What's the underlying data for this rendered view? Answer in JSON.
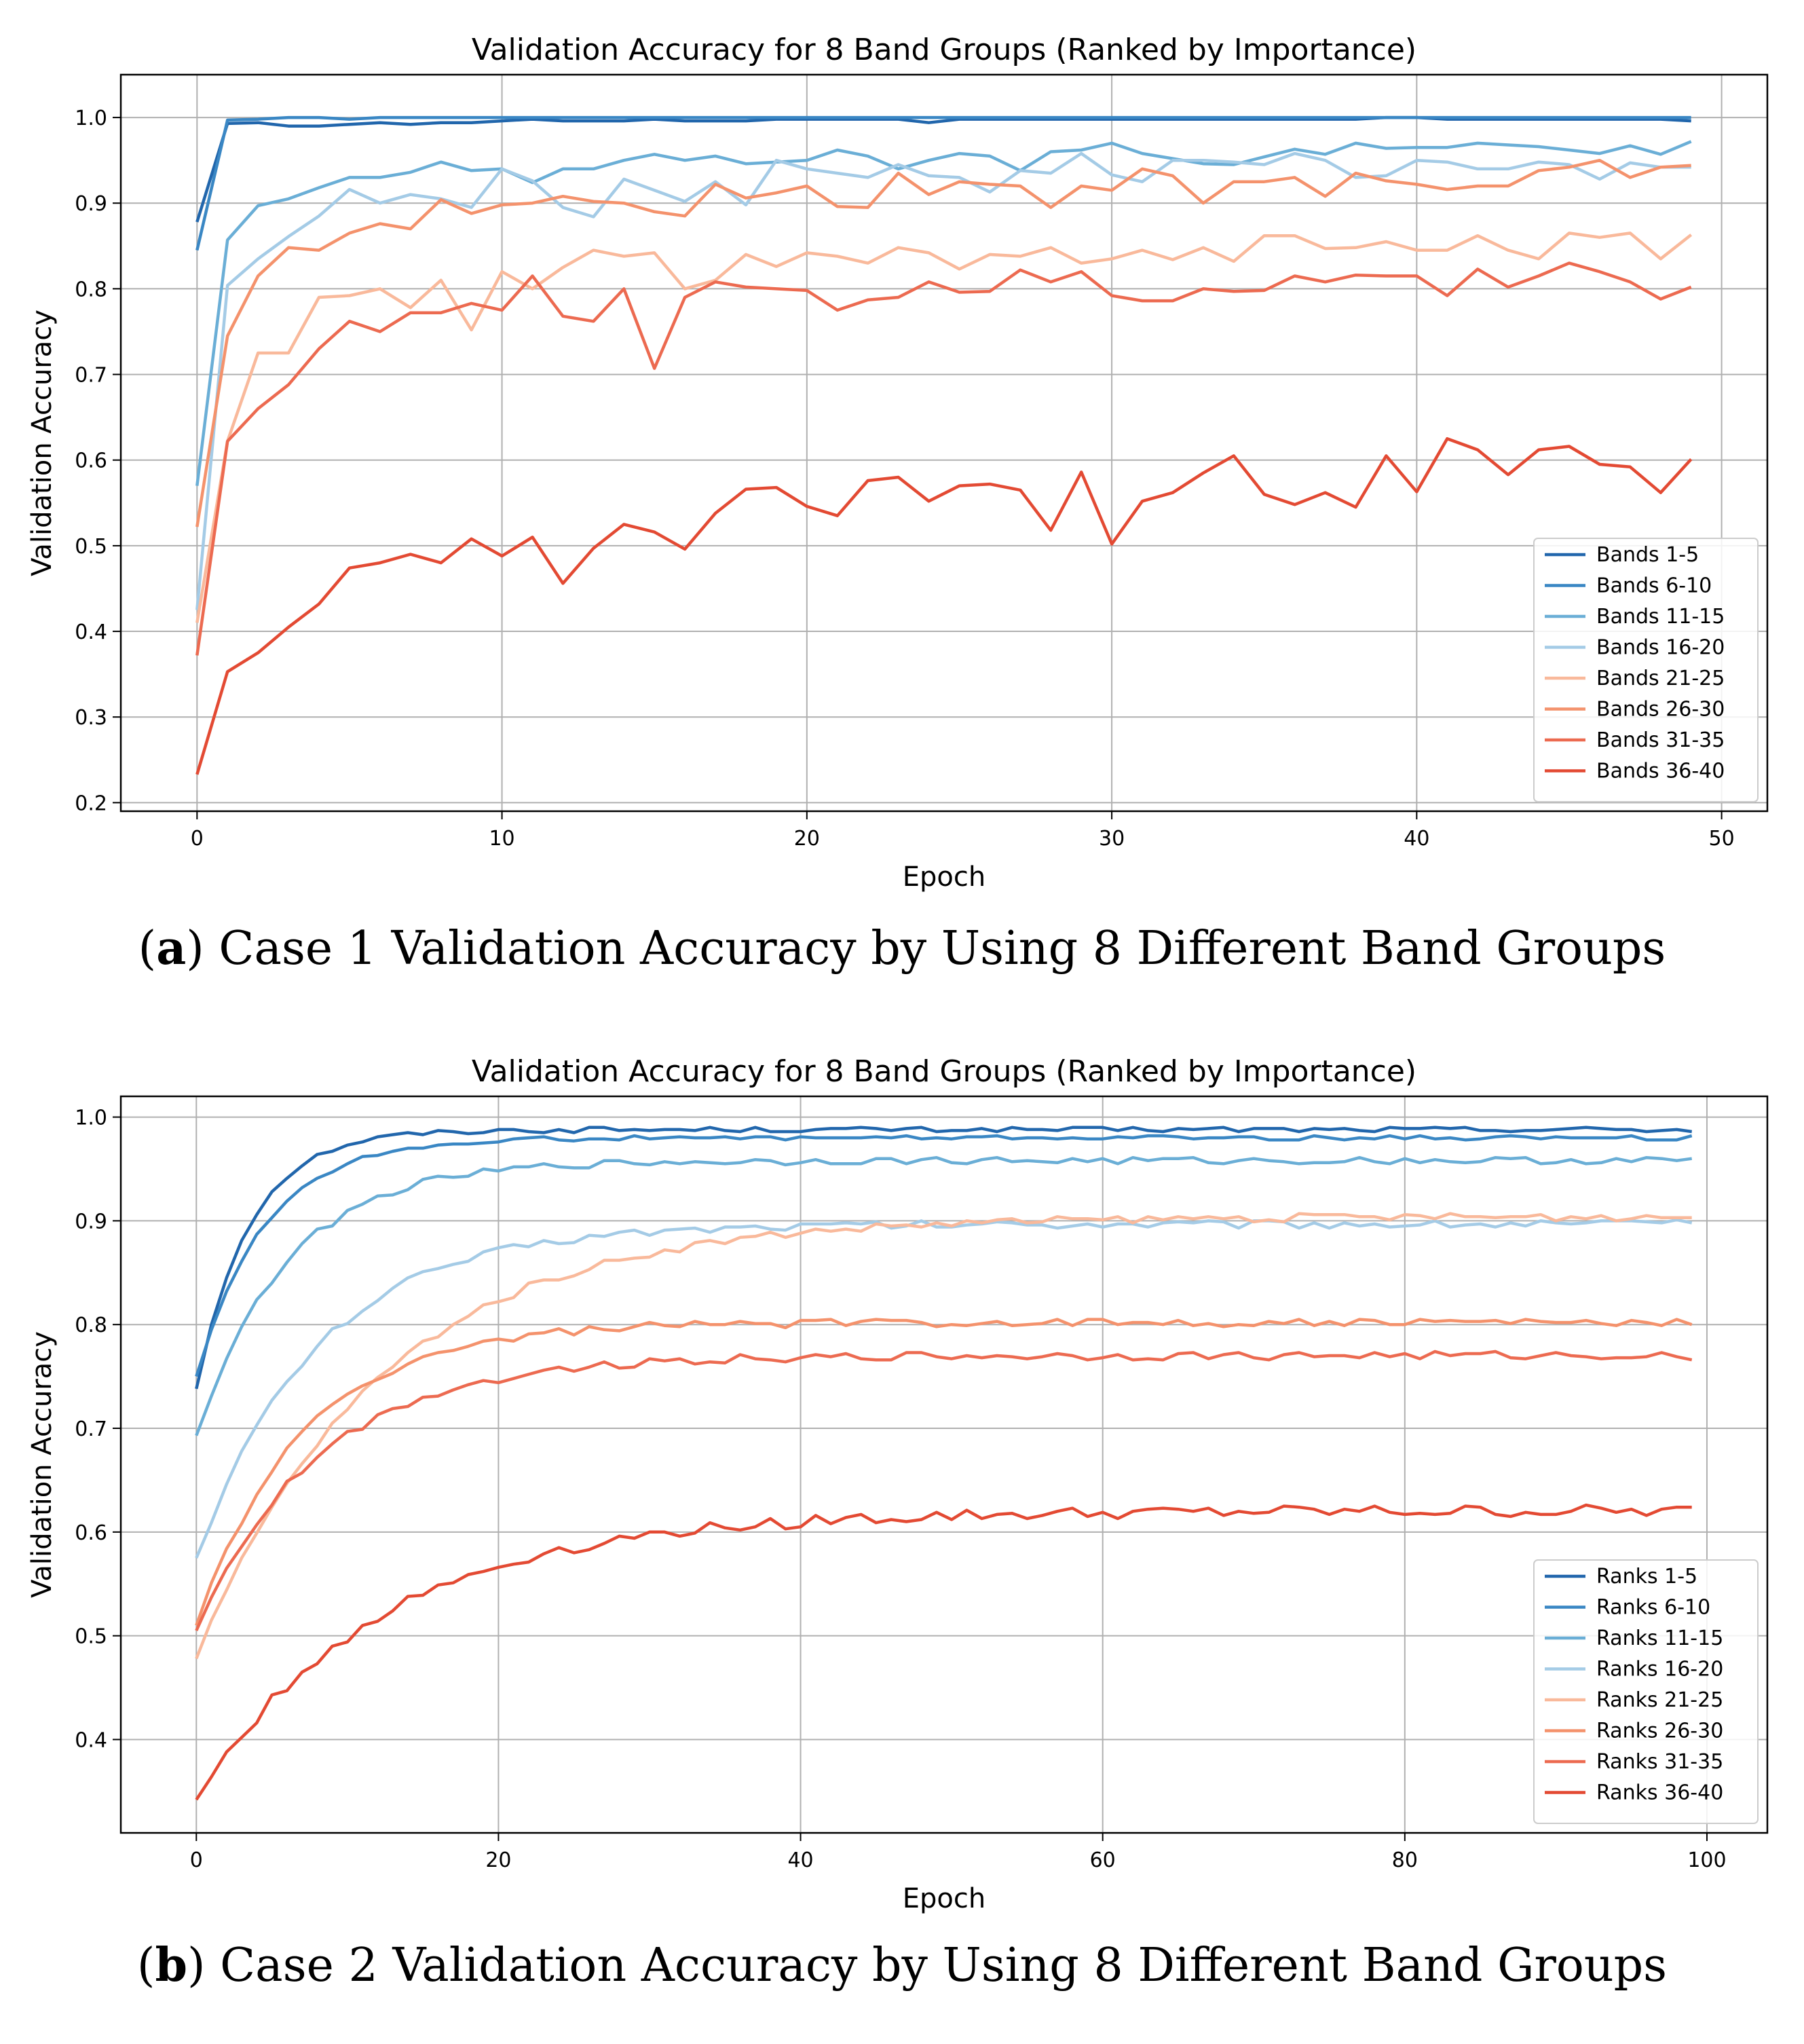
{
  "chart_data": [
    {
      "type": "line",
      "title": "Validation Accuracy for 8 Band Groups (Ranked by Importance)",
      "xlabel": "Epoch",
      "ylabel": "Validation Accuracy",
      "xlim": [
        -2.5,
        51.5
      ],
      "ylim": [
        0.19,
        1.05
      ],
      "xticks": [
        0,
        10,
        20,
        30,
        40,
        50
      ],
      "yticks": [
        0.2,
        0.3,
        0.4,
        0.5,
        0.6,
        0.7,
        0.8,
        0.9,
        1.0
      ],
      "grid": true,
      "legend_position": "lower right",
      "caption_label": "a",
      "caption_text": "Case 1 Validation Accuracy by Using 8 Different Band Groups",
      "series": [
        {
          "name": "Bands 1-5",
          "color": "#2166ac",
          "values": [
            0.878,
            0.993,
            0.994,
            0.99,
            0.99,
            0.992,
            0.994,
            0.992,
            0.994,
            0.994,
            0.996,
            0.998,
            0.996,
            0.996,
            0.996,
            0.998,
            0.996,
            0.996,
            0.996,
            0.998,
            0.998,
            0.998,
            0.998,
            0.998,
            0.994,
            0.998,
            0.998,
            0.998,
            0.998,
            0.998,
            0.998,
            0.998,
            0.998,
            0.998,
            0.998,
            0.998,
            0.998,
            0.998,
            0.998,
            1.0,
            1.0,
            0.998,
            0.998,
            0.998,
            0.998,
            0.998,
            0.998,
            0.998,
            0.998,
            0.996
          ]
        },
        {
          "name": "Bands 6-10",
          "color": "#3a87c4",
          "values": [
            0.845,
            0.997,
            0.998,
            1.0,
            1.0,
            0.998,
            1.0,
            1.0,
            1.0,
            1.0,
            1.0,
            1.0,
            1.0,
            1.0,
            1.0,
            1.0,
            1.0,
            1.0,
            1.0,
            1.0,
            1.0,
            1.0,
            1.0,
            1.0,
            1.0,
            1.0,
            1.0,
            1.0,
            1.0,
            1.0,
            1.0,
            1.0,
            1.0,
            1.0,
            1.0,
            1.0,
            1.0,
            1.0,
            1.0,
            1.0,
            1.0,
            1.0,
            1.0,
            1.0,
            1.0,
            1.0,
            1.0,
            1.0,
            1.0,
            1.0
          ]
        },
        {
          "name": "Bands 11-15",
          "color": "#6aaed6",
          "values": [
            0.57,
            0.857,
            0.897,
            0.905,
            0.918,
            0.93,
            0.93,
            0.936,
            0.948,
            0.938,
            0.94,
            0.924,
            0.94,
            0.94,
            0.95,
            0.957,
            0.95,
            0.955,
            0.946,
            0.948,
            0.95,
            0.962,
            0.955,
            0.94,
            0.95,
            0.958,
            0.955,
            0.938,
            0.96,
            0.962,
            0.97,
            0.958,
            0.952,
            0.946,
            0.945,
            0.954,
            0.963,
            0.957,
            0.97,
            0.964,
            0.965,
            0.965,
            0.97,
            0.968,
            0.966,
            0.962,
            0.958,
            0.967,
            0.957,
            0.972
          ]
        },
        {
          "name": "Bands 16-20",
          "color": "#a4cbe6",
          "values": [
            0.425,
            0.804,
            0.835,
            0.861,
            0.885,
            0.916,
            0.9,
            0.91,
            0.905,
            0.895,
            0.94,
            0.926,
            0.895,
            0.884,
            0.928,
            0.915,
            0.902,
            0.925,
            0.898,
            0.95,
            0.94,
            0.935,
            0.93,
            0.945,
            0.932,
            0.93,
            0.913,
            0.938,
            0.935,
            0.958,
            0.933,
            0.925,
            0.95,
            0.95,
            0.948,
            0.945,
            0.958,
            0.95,
            0.93,
            0.932,
            0.95,
            0.948,
            0.94,
            0.94,
            0.948,
            0.945,
            0.928,
            0.947,
            0.942,
            0.942
          ]
        },
        {
          "name": "Bands 21-25",
          "color": "#f9b99b",
          "values": [
            0.41,
            0.622,
            0.725,
            0.725,
            0.79,
            0.792,
            0.8,
            0.778,
            0.81,
            0.752,
            0.82,
            0.8,
            0.825,
            0.845,
            0.838,
            0.842,
            0.8,
            0.81,
            0.84,
            0.826,
            0.842,
            0.838,
            0.83,
            0.848,
            0.842,
            0.823,
            0.84,
            0.838,
            0.848,
            0.83,
            0.835,
            0.845,
            0.834,
            0.848,
            0.832,
            0.862,
            0.862,
            0.847,
            0.848,
            0.855,
            0.845,
            0.845,
            0.862,
            0.845,
            0.835,
            0.865,
            0.86,
            0.865,
            0.835,
            0.863
          ]
        },
        {
          "name": "Bands 26-30",
          "color": "#f4926c",
          "values": [
            0.522,
            0.745,
            0.815,
            0.848,
            0.845,
            0.865,
            0.876,
            0.87,
            0.904,
            0.888,
            0.898,
            0.9,
            0.908,
            0.902,
            0.9,
            0.89,
            0.885,
            0.922,
            0.906,
            0.912,
            0.92,
            0.896,
            0.895,
            0.935,
            0.91,
            0.925,
            0.922,
            0.92,
            0.895,
            0.92,
            0.915,
            0.94,
            0.932,
            0.9,
            0.925,
            0.925,
            0.93,
            0.908,
            0.935,
            0.926,
            0.922,
            0.916,
            0.92,
            0.92,
            0.938,
            0.942,
            0.95,
            0.93,
            0.942,
            0.944
          ]
        },
        {
          "name": "Bands 31-35",
          "color": "#ec6a50",
          "values": [
            0.372,
            0.622,
            0.66,
            0.688,
            0.73,
            0.762,
            0.75,
            0.772,
            0.772,
            0.783,
            0.775,
            0.815,
            0.768,
            0.762,
            0.8,
            0.707,
            0.79,
            0.808,
            0.802,
            0.8,
            0.798,
            0.775,
            0.787,
            0.79,
            0.808,
            0.796,
            0.797,
            0.822,
            0.808,
            0.82,
            0.792,
            0.786,
            0.786,
            0.8,
            0.797,
            0.798,
            0.815,
            0.808,
            0.816,
            0.815,
            0.815,
            0.792,
            0.823,
            0.802,
            0.815,
            0.83,
            0.82,
            0.808,
            0.788,
            0.802
          ]
        },
        {
          "name": "Bands 36-40",
          "color": "#e34a33",
          "values": [
            0.233,
            0.353,
            0.375,
            0.405,
            0.432,
            0.474,
            0.48,
            0.49,
            0.48,
            0.508,
            0.488,
            0.51,
            0.456,
            0.497,
            0.525,
            0.516,
            0.496,
            0.538,
            0.566,
            0.568,
            0.546,
            0.535,
            0.576,
            0.58,
            0.552,
            0.57,
            0.572,
            0.565,
            0.518,
            0.586,
            0.502,
            0.552,
            0.562,
            0.585,
            0.605,
            0.56,
            0.548,
            0.562,
            0.545,
            0.605,
            0.563,
            0.625,
            0.612,
            0.583,
            0.612,
            0.616,
            0.595,
            0.592,
            0.562,
            0.601
          ]
        }
      ]
    },
    {
      "type": "line",
      "title": "Validation Accuracy for 8 Band Groups (Ranked by Importance)",
      "xlabel": "Epoch",
      "ylabel": "Validation Accuracy",
      "xlim": [
        -5,
        104
      ],
      "ylim": [
        0.31,
        1.02
      ],
      "xticks": [
        0,
        20,
        40,
        60,
        80,
        100
      ],
      "yticks": [
        0.4,
        0.5,
        0.6,
        0.7,
        0.8,
        0.9,
        1.0
      ],
      "grid": true,
      "legend_position": "lower right",
      "caption_label": "b",
      "caption_text": "Case 2 Validation Accuracy by Using 8 Different Band Groups",
      "series_def": [
        {
          "name": "Ranks 1-5",
          "color": "#2166ac",
          "start": 0.738,
          "plateau": 0.988,
          "tau": 3.5,
          "noise": 0.0025
        },
        {
          "name": "Ranks 6-10",
          "color": "#3a87c4",
          "start": 0.75,
          "plateau": 0.98,
          "tau": 4.5,
          "noise": 0.002
        },
        {
          "name": "Ranks 11-15",
          "color": "#6aaed6",
          "start": 0.693,
          "plateau": 0.958,
          "tau": 6.0,
          "noise": 0.0035
        },
        {
          "name": "Ranks 16-20",
          "color": "#a4cbe6",
          "start": 0.575,
          "plateau": 0.897,
          "tau": 8.0,
          "noise": 0.004
        },
        {
          "name": "Ranks 21-25",
          "color": "#f9b99b",
          "start": 0.478,
          "plateau": 0.904,
          "tau": 12.0,
          "noise": 0.004
        },
        {
          "name": "Ranks 26-30",
          "color": "#f4926c",
          "start": 0.51,
          "plateau": 0.802,
          "tau": 7.0,
          "noise": 0.004
        },
        {
          "name": "Ranks 31-35",
          "color": "#ec6a50",
          "start": 0.505,
          "plateau": 0.77,
          "tau": 8.0,
          "noise": 0.004
        },
        {
          "name": "Ranks 36-40",
          "color": "#e34a33",
          "start": 0.342,
          "plateau": 0.62,
          "tau": 12.0,
          "noise": 0.006
        }
      ],
      "n_epochs": 100
    }
  ]
}
